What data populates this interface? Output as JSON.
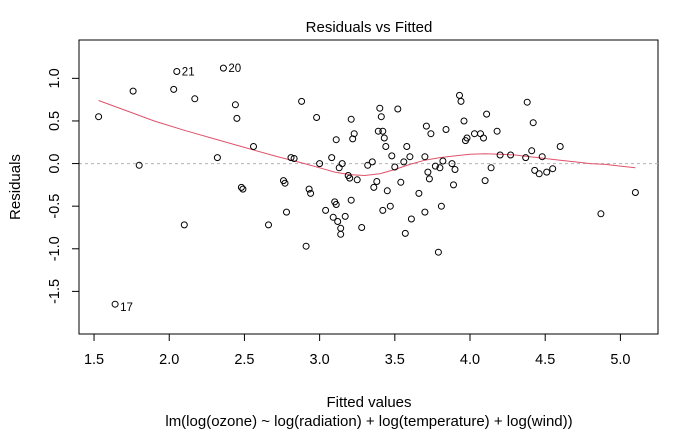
{
  "chart_data": {
    "type": "scatter",
    "title": "Residuals vs Fitted",
    "xlabel": "Fitted values",
    "sublabel": "lm(log(ozone) ~ log(radiation) + log(temperature) + log(wind))",
    "ylabel": "Residuals",
    "xlim": [
      1.4,
      5.25
    ],
    "ylim": [
      -2.0,
      1.45
    ],
    "xticks": [
      1.5,
      2.0,
      2.5,
      3.0,
      3.5,
      4.0,
      4.5,
      5.0
    ],
    "xtick_labels": [
      "1.5",
      "2.0",
      "2.5",
      "3.0",
      "3.5",
      "4.0",
      "4.5",
      "5.0"
    ],
    "yticks": [
      -1.5,
      -1.0,
      -0.5,
      0.0,
      0.5,
      1.0
    ],
    "ytick_labels": [
      "-1.5",
      "-1.0",
      "-0.5",
      "0.0",
      "0.5",
      "1.0"
    ],
    "zero_line": 0,
    "colors": {
      "points": "#000000",
      "smooth": "#df536b",
      "zero_line": "#b3b3b3"
    },
    "points": [
      [
        1.53,
        0.55
      ],
      [
        1.64,
        -1.65
      ],
      [
        1.76,
        0.85
      ],
      [
        1.8,
        -0.02
      ],
      [
        2.03,
        0.87
      ],
      [
        2.05,
        1.08
      ],
      [
        2.1,
        -0.72
      ],
      [
        2.17,
        0.76
      ],
      [
        2.32,
        0.07
      ],
      [
        2.36,
        1.12
      ],
      [
        2.44,
        0.69
      ],
      [
        2.45,
        0.53
      ],
      [
        2.48,
        -0.28
      ],
      [
        2.49,
        -0.3
      ],
      [
        2.56,
        0.2
      ],
      [
        2.66,
        -0.72
      ],
      [
        2.76,
        -0.2
      ],
      [
        2.77,
        -0.23
      ],
      [
        2.78,
        -0.57
      ],
      [
        2.81,
        0.07
      ],
      [
        2.83,
        0.06
      ],
      [
        2.88,
        0.73
      ],
      [
        2.91,
        -0.97
      ],
      [
        2.93,
        -0.3
      ],
      [
        2.94,
        -0.35
      ],
      [
        2.98,
        0.54
      ],
      [
        3.0,
        0.0
      ],
      [
        3.04,
        -0.55
      ],
      [
        3.08,
        0.07
      ],
      [
        3.09,
        -0.63
      ],
      [
        3.1,
        -0.45
      ],
      [
        3.11,
        -0.48
      ],
      [
        3.11,
        0.28
      ],
      [
        3.12,
        -0.68
      ],
      [
        3.13,
        -0.05
      ],
      [
        3.14,
        -0.76
      ],
      [
        3.14,
        -0.83
      ],
      [
        3.15,
        0.0
      ],
      [
        3.17,
        -0.62
      ],
      [
        3.19,
        -0.14
      ],
      [
        3.2,
        -0.17
      ],
      [
        3.21,
        0.52
      ],
      [
        3.21,
        -0.43
      ],
      [
        3.22,
        0.29
      ],
      [
        3.23,
        0.35
      ],
      [
        3.25,
        -0.19
      ],
      [
        3.28,
        -0.75
      ],
      [
        3.32,
        -0.02
      ],
      [
        3.35,
        0.02
      ],
      [
        3.36,
        -0.28
      ],
      [
        3.38,
        -0.21
      ],
      [
        3.39,
        0.38
      ],
      [
        3.4,
        0.65
      ],
      [
        3.41,
        0.55
      ],
      [
        3.42,
        0.38
      ],
      [
        3.42,
        -0.55
      ],
      [
        3.43,
        0.3
      ],
      [
        3.44,
        0.2
      ],
      [
        3.45,
        -0.32
      ],
      [
        3.47,
        -0.5
      ],
      [
        3.48,
        0.09
      ],
      [
        3.5,
        -0.04
      ],
      [
        3.52,
        0.64
      ],
      [
        3.54,
        -0.22
      ],
      [
        3.56,
        0.02
      ],
      [
        3.57,
        -0.82
      ],
      [
        3.58,
        0.2
      ],
      [
        3.6,
        0.08
      ],
      [
        3.61,
        -0.65
      ],
      [
        3.66,
        -0.35
      ],
      [
        3.7,
        -0.57
      ],
      [
        3.7,
        0.08
      ],
      [
        3.71,
        0.44
      ],
      [
        3.72,
        -0.1
      ],
      [
        3.73,
        -0.18
      ],
      [
        3.74,
        0.35
      ],
      [
        3.77,
        -0.03
      ],
      [
        3.79,
        -1.04
      ],
      [
        3.8,
        -0.05
      ],
      [
        3.81,
        -0.5
      ],
      [
        3.82,
        0.03
      ],
      [
        3.84,
        0.4
      ],
      [
        3.88,
        0.0
      ],
      [
        3.89,
        -0.25
      ],
      [
        3.9,
        -0.07
      ],
      [
        3.93,
        0.8
      ],
      [
        3.94,
        0.73
      ],
      [
        3.96,
        0.5
      ],
      [
        3.97,
        0.27
      ],
      [
        3.98,
        0.3
      ],
      [
        4.03,
        0.35
      ],
      [
        4.07,
        0.35
      ],
      [
        4.09,
        0.3
      ],
      [
        4.1,
        -0.2
      ],
      [
        4.11,
        0.58
      ],
      [
        4.14,
        -0.05
      ],
      [
        4.18,
        0.38
      ],
      [
        4.2,
        0.1
      ],
      [
        4.27,
        0.1
      ],
      [
        4.37,
        0.07
      ],
      [
        4.38,
        0.72
      ],
      [
        4.41,
        0.15
      ],
      [
        4.42,
        0.48
      ],
      [
        4.43,
        -0.08
      ],
      [
        4.46,
        -0.12
      ],
      [
        4.48,
        0.08
      ],
      [
        4.51,
        -0.1
      ],
      [
        4.55,
        -0.06
      ],
      [
        4.6,
        0.2
      ],
      [
        4.87,
        -0.59
      ],
      [
        5.1,
        -0.34
      ]
    ],
    "labeled_points": [
      {
        "label": "21",
        "x": 2.05,
        "y": 1.08
      },
      {
        "label": "20",
        "x": 2.36,
        "y": 1.12
      },
      {
        "label": "17",
        "x": 1.64,
        "y": -1.65
      }
    ],
    "smooth_line": [
      [
        1.53,
        0.74
      ],
      [
        1.7,
        0.63
      ],
      [
        1.9,
        0.5
      ],
      [
        2.1,
        0.39
      ],
      [
        2.3,
        0.29
      ],
      [
        2.5,
        0.19
      ],
      [
        2.7,
        0.09
      ],
      [
        2.9,
        0.0
      ],
      [
        3.0,
        -0.05
      ],
      [
        3.1,
        -0.1
      ],
      [
        3.2,
        -0.13
      ],
      [
        3.3,
        -0.14
      ],
      [
        3.4,
        -0.12
      ],
      [
        3.5,
        -0.07
      ],
      [
        3.6,
        -0.01
      ],
      [
        3.7,
        0.04
      ],
      [
        3.8,
        0.07
      ],
      [
        3.9,
        0.09
      ],
      [
        4.0,
        0.11
      ],
      [
        4.1,
        0.115
      ],
      [
        4.2,
        0.11
      ],
      [
        4.3,
        0.1
      ],
      [
        4.4,
        0.08
      ],
      [
        4.5,
        0.06
      ],
      [
        4.6,
        0.04
      ],
      [
        4.7,
        0.02
      ],
      [
        4.8,
        0.0
      ],
      [
        4.9,
        -0.01
      ],
      [
        5.0,
        -0.03
      ],
      [
        5.1,
        -0.05
      ]
    ]
  }
}
